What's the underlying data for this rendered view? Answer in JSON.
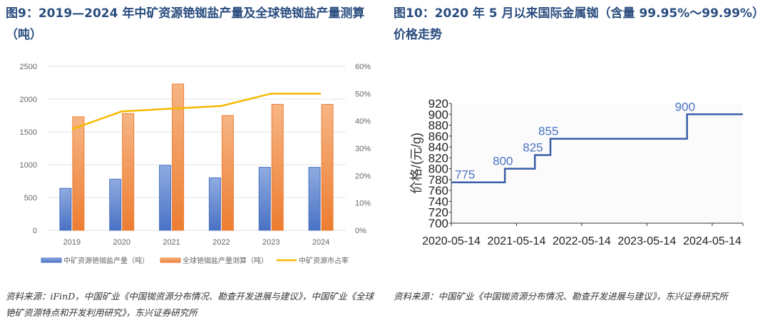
{
  "left": {
    "title": "图9：2019—2024 年中矿资源铯铷盐产量及全球铯铷盐产量测算（吨）",
    "source": "资料来源：iFinD，中国矿业《中国铷资源分布情况、勘查开发进展与建议》，中国矿业《全球铯矿资源特点和开发利用研究》，东兴证券研究所"
  },
  "right": {
    "title": "图10：2020 年 5 月以来国际金属铷（含量 99.95%～99.99%）价格走势",
    "source": "资料来源：中国矿业《中国铷资源分布情况、勘查开发进展与建议》，东兴证券研究所"
  },
  "chart_data": [
    {
      "type": "bar+line",
      "categories": [
        "2019",
        "2020",
        "2021",
        "2022",
        "2023",
        "2024"
      ],
      "series": [
        {
          "name": "中矿资源铯铷盐产量（吨）",
          "type": "bar",
          "axis": "left",
          "color": "#4a72c4",
          "values": [
            640,
            780,
            990,
            800,
            960,
            960
          ]
        },
        {
          "name": "全球铯铷盐产量测算（吨）",
          "type": "bar",
          "axis": "left",
          "color": "#ed7d31",
          "values": [
            1730,
            1780,
            2230,
            1750,
            1920,
            1920
          ]
        },
        {
          "name": "中矿资源市占率",
          "type": "line",
          "axis": "right",
          "color": "#f5b800",
          "values": [
            37,
            43.5,
            44.5,
            45.5,
            50,
            50
          ]
        }
      ],
      "yticks": [
        "0",
        "500",
        "1000",
        "1500",
        "2000",
        "2500"
      ],
      "ylim": [
        0,
        2500
      ],
      "y2ticks": [
        "0%",
        "10%",
        "20%",
        "30%",
        "40%",
        "50%",
        "60%"
      ],
      "y2lim": [
        0,
        60
      ],
      "grid": true,
      "legend": "bottom"
    },
    {
      "type": "line",
      "step": true,
      "color": "#3a5fa8",
      "ylabel": "价格/(元/g)",
      "ylim": [
        700,
        920
      ],
      "yticks": [
        "700",
        "720",
        "740",
        "760",
        "780",
        "800",
        "820",
        "840",
        "860",
        "880",
        "900",
        "920"
      ],
      "xticks": [
        "2020-05-14",
        "2021-05-14",
        "2022-05-14",
        "2023-05-14",
        "2024-05-14"
      ],
      "points": [
        {
          "x": "2020-05-14",
          "y": 775
        },
        {
          "x": "2021-03-10",
          "y": 800
        },
        {
          "x": "2021-08-25",
          "y": 825
        },
        {
          "x": "2021-11-20",
          "y": 855
        },
        {
          "x": "2023-12-25",
          "y": 900
        },
        {
          "x": "2024-11-01",
          "y": 900
        }
      ],
      "labels": [
        "775",
        "800",
        "825",
        "855",
        "900"
      ]
    }
  ]
}
